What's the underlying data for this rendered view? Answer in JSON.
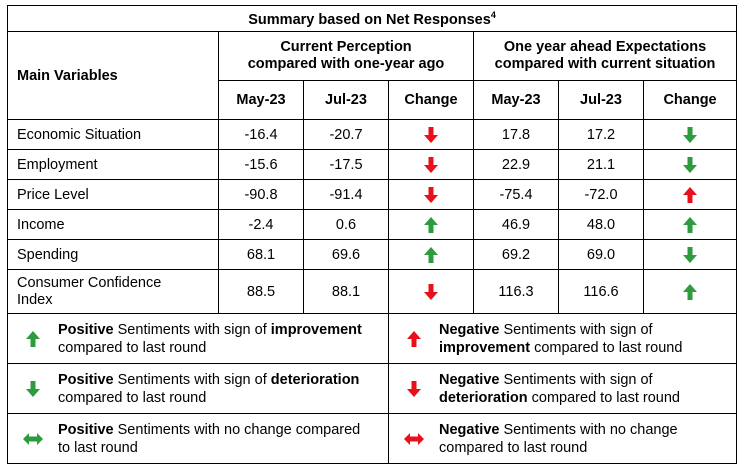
{
  "title": "Summary based on Net Responses",
  "title_sup": "4",
  "header": {
    "main_variables": "Main Variables",
    "group1_line1": "Current Perception",
    "group1_line2": "compared with one-year ago",
    "group2_line1": "One year ahead Expectations",
    "group2_line2": "compared with current situation",
    "cols": [
      "May-23",
      "Jul-23",
      "Change",
      "May-23",
      "Jul-23",
      "Change"
    ]
  },
  "rows": [
    {
      "label": "Economic Situation",
      "cp_may": "-16.4",
      "cp_jul": "-20.7",
      "cp_change": "red-down",
      "ex_may": "17.8",
      "ex_jul": "17.2",
      "ex_change": "green-down"
    },
    {
      "label": "Employment",
      "cp_may": "-15.6",
      "cp_jul": "-17.5",
      "cp_change": "red-down",
      "ex_may": "22.9",
      "ex_jul": "21.1",
      "ex_change": "green-down"
    },
    {
      "label": "Price Level",
      "cp_may": "-90.8",
      "cp_jul": "-91.4",
      "cp_change": "red-down",
      "ex_may": "-75.4",
      "ex_jul": "-72.0",
      "ex_change": "red-up"
    },
    {
      "label": "Income",
      "cp_may": "-2.4",
      "cp_jul": "0.6",
      "cp_change": "green-up",
      "ex_may": "46.9",
      "ex_jul": "48.0",
      "ex_change": "green-up"
    },
    {
      "label": "Spending",
      "cp_may": "68.1",
      "cp_jul": "69.6",
      "cp_change": "green-up",
      "ex_may": "69.2",
      "ex_jul": "69.0",
      "ex_change": "green-down"
    },
    {
      "label_line1": "Consumer Confidence",
      "label_line2": "Index",
      "cp_may": "88.5",
      "cp_jul": "88.1",
      "cp_change": "red-down",
      "ex_may": "116.3",
      "ex_jul": "116.6",
      "ex_change": "green-up"
    }
  ],
  "legend": [
    {
      "icon": "green-up-arrow-icon",
      "bold1": "Positive",
      "text1": " Sentiments with sign of ",
      "bold2": "improvement",
      "line2": "compared to last round"
    },
    {
      "icon": "red-up-arrow-icon",
      "bold1": "Negative",
      "text1": " Sentiments with sign of",
      "bold2": "improvement",
      "line2": " compared to last round"
    },
    {
      "icon": "green-down-arrow-icon",
      "bold1": "Positive",
      "text1": " Sentiments with sign of ",
      "bold2": "deterioration",
      "line2": "compared to last round"
    },
    {
      "icon": "red-down-arrow-icon",
      "bold1": "Negative",
      "text1": " Sentiments with sign of",
      "bold2": "deterioration",
      "line2": " compared to last round"
    },
    {
      "icon": "green-left-right-arrow-icon",
      "bold1": "Positive",
      "text1": " Sentiments with no change compared",
      "line2": "to last round"
    },
    {
      "icon": "red-left-right-arrow-icon",
      "bold1": "Negative",
      "text1": " Sentiments with no change",
      "line2": "compared to last round"
    }
  ],
  "colors": {
    "green": "#2e9b3e",
    "red": "#e8101a"
  }
}
